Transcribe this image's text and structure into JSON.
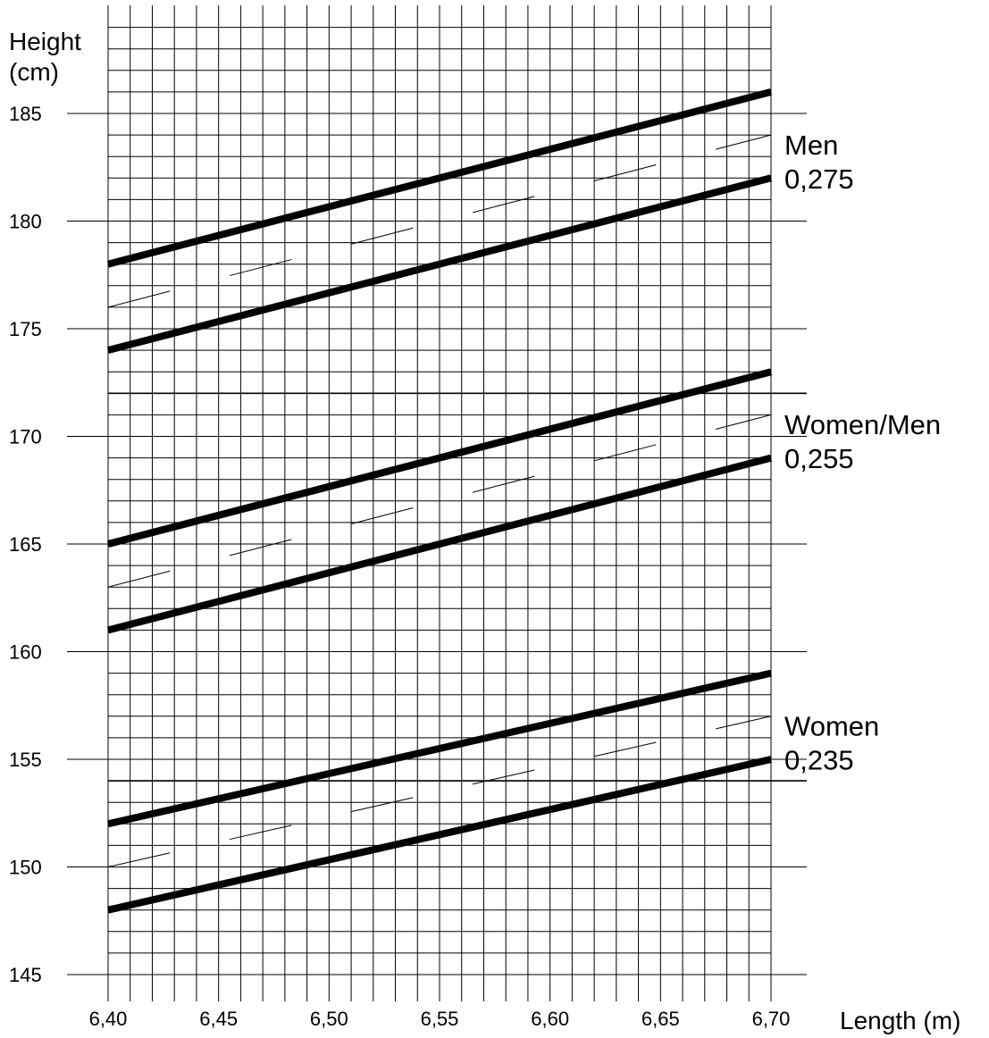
{
  "chart_data": {
    "type": "line",
    "ylabel": [
      "Height",
      "(cm)"
    ],
    "xlabel": "Length (m)",
    "xlim": [
      6.4,
      6.7
    ],
    "ylim": [
      145,
      186
    ],
    "x_ticks": [
      {
        "value": 6.4,
        "label": "6,40"
      },
      {
        "value": 6.45,
        "label": "6,45"
      },
      {
        "value": 6.5,
        "label": "6,50"
      },
      {
        "value": 6.55,
        "label": "6,55"
      },
      {
        "value": 6.6,
        "label": "6,60"
      },
      {
        "value": 6.65,
        "label": "6,65"
      },
      {
        "value": 6.7,
        "label": "6,70"
      }
    ],
    "y_ticks": [
      {
        "value": 145,
        "label": "145"
      },
      {
        "value": 150,
        "label": "150"
      },
      {
        "value": 155,
        "label": "155"
      },
      {
        "value": 160,
        "label": "160"
      },
      {
        "value": 165,
        "label": "165"
      },
      {
        "value": 170,
        "label": "170"
      },
      {
        "value": 175,
        "label": "175"
      },
      {
        "value": 180,
        "label": "180"
      },
      {
        "value": 185,
        "label": "185"
      }
    ],
    "grid": true,
    "grid_minor_x": 0.01,
    "grid_minor_y": 1,
    "extra_hlines": [
      172,
      154
    ],
    "bands": [
      {
        "name": "Men",
        "ratio": "0,275",
        "upper": {
          "x": [
            6.4,
            6.7
          ],
          "y": [
            178,
            186
          ]
        },
        "lower": {
          "x": [
            6.4,
            6.7
          ],
          "y": [
            174,
            182
          ]
        },
        "guide_base_y": 176
      },
      {
        "name": "Women/Men",
        "ratio": "0,255",
        "upper": {
          "x": [
            6.4,
            6.7
          ],
          "y": [
            165,
            173
          ]
        },
        "lower": {
          "x": [
            6.4,
            6.7
          ],
          "y": [
            161,
            169
          ]
        },
        "guide_base_y": 163
      },
      {
        "name": "Women",
        "ratio": "0,235",
        "upper": {
          "x": [
            6.4,
            6.7
          ],
          "y": [
            152,
            159
          ]
        },
        "lower": {
          "x": [
            6.4,
            6.7
          ],
          "y": [
            148,
            155
          ]
        },
        "guide_base_y": 150
      }
    ]
  }
}
